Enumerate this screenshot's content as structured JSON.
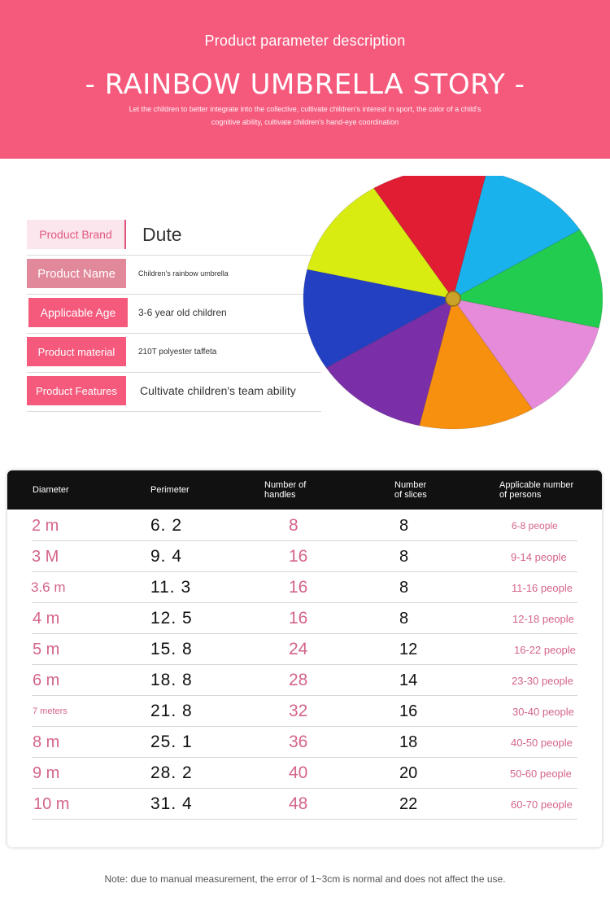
{
  "header": {
    "subtitle": "Product parameter description",
    "title": "- RAINBOW UMBRELLA STORY -",
    "description": "Let the children to better integrate into the collective, cultivate children's interest in sport, the color of a child's cognitive ability, cultivate children's hand-eye coordination"
  },
  "params": [
    {
      "label": "Product Brand",
      "value": "Dute"
    },
    {
      "label": "Product Name",
      "value": "Children's rainbow umbrella"
    },
    {
      "label": "Applicable Age",
      "value": "3-6 year old children"
    },
    {
      "label": "Product material",
      "value": "210T polyester taffeta"
    },
    {
      "label": "Product Features",
      "value": "Cultivate children's team ability"
    }
  ],
  "umbrella_colors": [
    "#e11d34",
    "#19b2ec",
    "#22cc4e",
    "#e68bd9",
    "#f7900f",
    "#7a2ea8",
    "#2340c2",
    "#d8ec12"
  ],
  "table": {
    "headers": {
      "diameter": "Diameter",
      "perimeter": "Perimeter",
      "handles_1": "Number of",
      "handles_2": "handles",
      "slices_1": "Number",
      "slices_2": "of slices",
      "persons_1": "Applicable number",
      "persons_2": "of persons"
    },
    "rows": [
      {
        "diameter": "2 m",
        "perimeter": "6. 2",
        "handles": "8",
        "slices": "8",
        "persons": "6-8 people"
      },
      {
        "diameter": "3 M",
        "perimeter": "9. 4",
        "handles": "16",
        "slices": "8",
        "persons": "9-14 people"
      },
      {
        "diameter": "3.6 m",
        "perimeter": "11. 3",
        "handles": "16",
        "slices": "8",
        "persons": "11-16 people"
      },
      {
        "diameter": "4 m",
        "perimeter": "12. 5",
        "handles": "16",
        "slices": "8",
        "persons": "12-18 people"
      },
      {
        "diameter": "5 m",
        "perimeter": "15. 8",
        "handles": "24",
        "slices": "12",
        "persons": "16-22 people"
      },
      {
        "diameter": "6 m",
        "perimeter": "18. 8",
        "handles": "28",
        "slices": "14",
        "persons": "23-30 people"
      },
      {
        "diameter": "7 meters",
        "perimeter": "21. 8",
        "handles": "32",
        "slices": "16",
        "persons": "30-40 people"
      },
      {
        "diameter": "8 m",
        "perimeter": "25. 1",
        "handles": "36",
        "slices": "18",
        "persons": "40-50 people"
      },
      {
        "diameter": "9 m",
        "perimeter": "28. 2",
        "handles": "40",
        "slices": "20",
        "persons": "50-60 people"
      },
      {
        "diameter": "10 m",
        "perimeter": "31. 4",
        "handles": "48",
        "slices": "22",
        "persons": "60-70 people"
      }
    ]
  },
  "note": "Note: due to manual measurement, the error of 1~3cm is normal and does not affect the use."
}
